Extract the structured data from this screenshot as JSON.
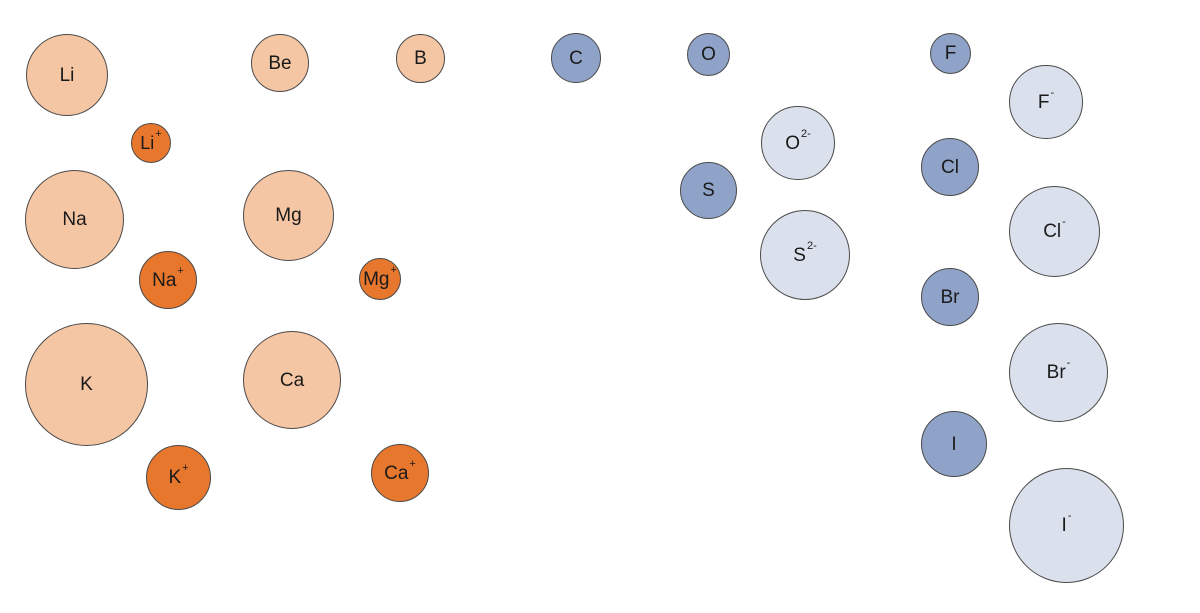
{
  "colors": {
    "alkali_atom": "#f5c6a4",
    "cation": "#e8772e",
    "nonmetal_atom": "#8fa3c8",
    "anion": "#dbe1ec",
    "outline": "#4a4a4a",
    "text": "#1a1a1a"
  },
  "spheres": {
    "li": {
      "symbol": "Li",
      "charge": ""
    },
    "li_ion": {
      "symbol": "Li",
      "charge": "+"
    },
    "na": {
      "symbol": "Na",
      "charge": ""
    },
    "na_ion": {
      "symbol": "Na",
      "charge": "+"
    },
    "k": {
      "symbol": "K",
      "charge": ""
    },
    "k_ion": {
      "symbol": "K",
      "charge": "+"
    },
    "be": {
      "symbol": "Be",
      "charge": ""
    },
    "mg": {
      "symbol": "Mg",
      "charge": ""
    },
    "mg_ion": {
      "symbol": "Mg",
      "charge": "+"
    },
    "ca": {
      "symbol": "Ca",
      "charge": ""
    },
    "ca_ion": {
      "symbol": "Ca",
      "charge": "+"
    },
    "b": {
      "symbol": "B",
      "charge": ""
    },
    "c": {
      "symbol": "C",
      "charge": ""
    },
    "o": {
      "symbol": "O",
      "charge": ""
    },
    "o_ion": {
      "symbol": "O",
      "charge": "2-"
    },
    "s": {
      "symbol": "S",
      "charge": ""
    },
    "s_ion": {
      "symbol": "S",
      "charge": "2-"
    },
    "f": {
      "symbol": "F",
      "charge": ""
    },
    "f_ion": {
      "symbol": "F",
      "charge": "-"
    },
    "cl": {
      "symbol": "Cl",
      "charge": ""
    },
    "cl_ion": {
      "symbol": "Cl",
      "charge": "-"
    },
    "br": {
      "symbol": "Br",
      "charge": ""
    },
    "br_ion": {
      "symbol": "Br",
      "charge": "-"
    },
    "i": {
      "symbol": "I",
      "charge": ""
    },
    "i_ion": {
      "symbol": "I",
      "charge": "-"
    }
  }
}
